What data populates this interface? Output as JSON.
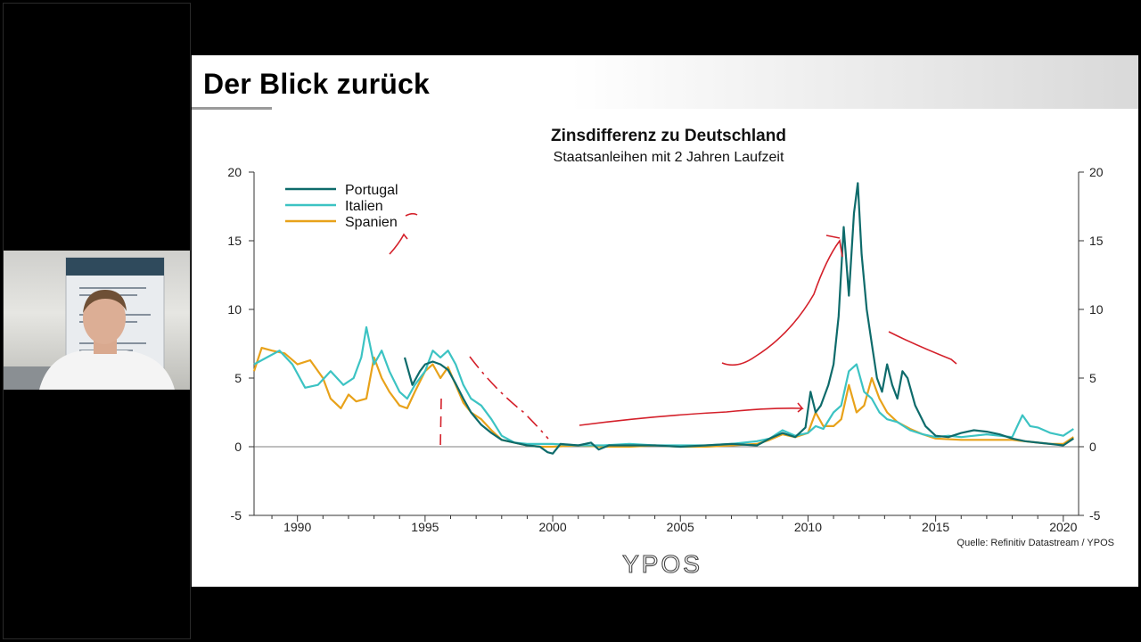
{
  "slide": {
    "title": "Der Blick zurück"
  },
  "footer": {
    "source": "Quelle: Refinitiv Datastream / YPOS",
    "logo": "YPOS"
  },
  "colors": {
    "portugal": "#0e6b6b",
    "italien": "#3cc3c3",
    "spanien": "#e8a21a",
    "annotation": "#d4202a"
  },
  "chart_data": {
    "type": "line",
    "title": "Zinsdifferenz zu Deutschland",
    "subtitle": "Staatsanleihen mit 2 Jahren Laufzeit",
    "xlim": [
      1988.3,
      2020.6
    ],
    "ylim": [
      -5,
      20
    ],
    "yticks": [
      -5,
      0,
      5,
      10,
      15,
      20
    ],
    "xticks": [
      1990,
      1995,
      2000,
      2005,
      2010,
      2015,
      2020
    ],
    "legend_position": "top-left",
    "series": [
      {
        "name": "Portugal",
        "color": "#0e6b6b",
        "x": [
          1994.2,
          1994.5,
          1994.8,
          1995.0,
          1995.3,
          1995.6,
          1995.9,
          1996.2,
          1996.5,
          1996.8,
          1997.2,
          1997.6,
          1998.0,
          1998.5,
          1999.0,
          1999.5,
          1999.8,
          2000.0,
          2000.3,
          2001.0,
          2001.5,
          2001.8,
          2002.2,
          2003.0,
          2004.0,
          2005.0,
          2006.0,
          2007.0,
          2008.0,
          2008.5,
          2009.0,
          2009.5,
          2009.9,
          2010.1,
          2010.3,
          2010.5,
          2010.8,
          2011.0,
          2011.2,
          2011.4,
          2011.6,
          2011.8,
          2011.95,
          2012.1,
          2012.3,
          2012.5,
          2012.7,
          2012.9,
          2013.1,
          2013.3,
          2013.5,
          2013.7,
          2013.9,
          2014.2,
          2014.6,
          2015.0,
          2015.5,
          2016.0,
          2016.5,
          2017.0,
          2017.5,
          2018.0,
          2018.5,
          2019.0,
          2019.5,
          2020.0,
          2020.4
        ],
        "y": [
          6.5,
          4.5,
          5.5,
          6.0,
          6.2,
          6.0,
          5.6,
          4.6,
          3.5,
          2.5,
          1.6,
          1.0,
          0.5,
          0.3,
          0.1,
          0.0,
          -0.4,
          -0.5,
          0.2,
          0.1,
          0.3,
          -0.2,
          0.1,
          0.1,
          0.1,
          0.0,
          0.1,
          0.2,
          0.1,
          0.6,
          1.0,
          0.7,
          1.4,
          4.0,
          2.5,
          3.0,
          4.5,
          6.0,
          9.5,
          16.0,
          11.0,
          17.0,
          19.2,
          14.0,
          10.0,
          7.5,
          5.0,
          4.0,
          6.0,
          4.5,
          3.5,
          5.5,
          5.0,
          3.0,
          1.5,
          0.8,
          0.7,
          1.0,
          1.2,
          1.1,
          0.9,
          0.6,
          0.4,
          0.3,
          0.2,
          0.1,
          0.6
        ]
      },
      {
        "name": "Italien",
        "color": "#3cc3c3",
        "x": [
          1988.3,
          1988.8,
          1989.3,
          1989.8,
          1990.3,
          1990.8,
          1991.3,
          1991.8,
          1992.2,
          1992.5,
          1992.7,
          1993.0,
          1993.3,
          1993.6,
          1994.0,
          1994.3,
          1994.6,
          1995.0,
          1995.3,
          1995.6,
          1995.9,
          1996.2,
          1996.5,
          1996.8,
          1997.2,
          1997.6,
          1998.0,
          1998.5,
          1999.0,
          1999.5,
          2000.0,
          2001.0,
          2002.0,
          2003.0,
          2004.0,
          2005.0,
          2006.0,
          2007.0,
          2008.0,
          2008.5,
          2009.0,
          2009.5,
          2010.0,
          2010.3,
          2010.6,
          2011.0,
          2011.3,
          2011.6,
          2011.9,
          2012.2,
          2012.5,
          2012.8,
          2013.1,
          2013.5,
          2014.0,
          2014.5,
          2015.0,
          2015.5,
          2016.0,
          2016.5,
          2017.0,
          2017.5,
          2018.0,
          2018.4,
          2018.7,
          2019.0,
          2019.5,
          2020.0,
          2020.4
        ],
        "y": [
          6.0,
          6.5,
          7.0,
          6.0,
          4.3,
          4.5,
          5.5,
          4.5,
          5.0,
          6.5,
          8.7,
          6.0,
          7.0,
          5.5,
          4.0,
          3.5,
          4.5,
          5.5,
          7.0,
          6.5,
          7.0,
          6.0,
          4.5,
          3.5,
          3.0,
          2.0,
          0.8,
          0.3,
          0.2,
          0.2,
          0.2,
          0.1,
          0.1,
          0.2,
          0.1,
          0.1,
          0.1,
          0.2,
          0.4,
          0.6,
          1.2,
          0.8,
          1.0,
          1.5,
          1.3,
          2.5,
          3.0,
          5.5,
          6.0,
          4.0,
          3.5,
          2.5,
          2.0,
          1.8,
          1.2,
          0.9,
          0.7,
          0.8,
          0.7,
          0.8,
          0.9,
          0.8,
          0.7,
          2.3,
          1.5,
          1.4,
          1.0,
          0.8,
          1.3
        ]
      },
      {
        "name": "Spanien",
        "color": "#e8a21a",
        "x": [
          1988.3,
          1988.6,
          1989.0,
          1989.5,
          1990.0,
          1990.5,
          1991.0,
          1991.3,
          1991.7,
          1992.0,
          1992.3,
          1992.7,
          1993.0,
          1993.3,
          1993.6,
          1994.0,
          1994.3,
          1994.6,
          1995.0,
          1995.3,
          1995.6,
          1995.9,
          1996.2,
          1996.5,
          1996.8,
          1997.2,
          1997.6,
          1998.0,
          1998.5,
          1999.0,
          1999.5,
          2000.0,
          2001.0,
          2002.0,
          2003.0,
          2004.0,
          2005.0,
          2006.0,
          2007.0,
          2008.0,
          2008.5,
          2009.0,
          2009.5,
          2010.0,
          2010.3,
          2010.6,
          2011.0,
          2011.3,
          2011.6,
          2011.9,
          2012.2,
          2012.5,
          2012.8,
          2013.1,
          2013.5,
          2014.0,
          2014.5,
          2015.0,
          2016.0,
          2017.0,
          2018.0,
          2019.0,
          2019.5,
          2020.0,
          2020.4
        ],
        "y": [
          5.5,
          7.2,
          7.0,
          6.8,
          6.0,
          6.3,
          5.0,
          3.5,
          2.8,
          3.8,
          3.3,
          3.5,
          6.5,
          5.0,
          4.0,
          3.0,
          2.8,
          4.0,
          5.5,
          6.0,
          5.0,
          5.8,
          4.5,
          3.2,
          2.5,
          2.0,
          1.2,
          0.5,
          0.3,
          0.1,
          0.0,
          0.0,
          0.1,
          0.0,
          0.0,
          0.1,
          0.0,
          0.0,
          0.1,
          0.2,
          0.5,
          0.9,
          0.7,
          1.0,
          2.5,
          1.5,
          1.5,
          2.0,
          4.5,
          2.5,
          3.0,
          5.0,
          3.5,
          2.5,
          1.8,
          1.3,
          0.9,
          0.6,
          0.5,
          0.5,
          0.5,
          0.3,
          0.2,
          0.2,
          0.7
        ]
      }
    ]
  }
}
